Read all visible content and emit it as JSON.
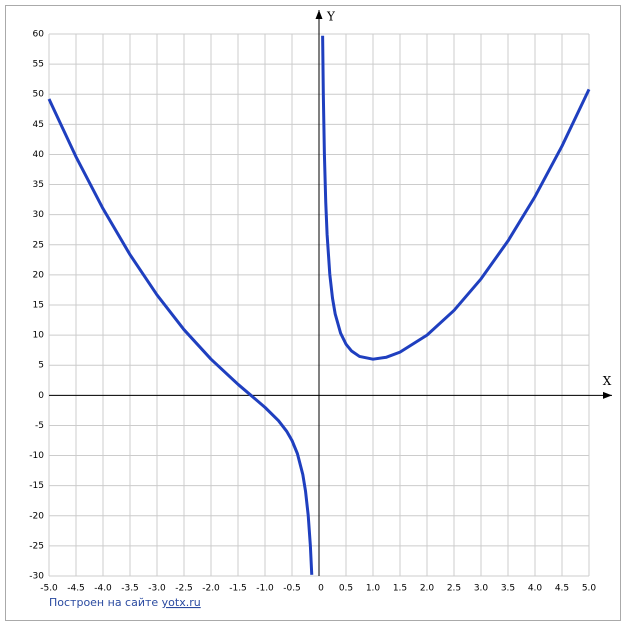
{
  "chart_data": {
    "type": "line",
    "xlabel": "X",
    "ylabel": "Y",
    "x": [
      -5,
      -4.5,
      -4,
      -3.5,
      -3,
      -2.5,
      -2,
      -1.5,
      -1.25,
      -1,
      -0.75,
      -0.6,
      -0.5,
      -0.4,
      -0.3,
      -0.25,
      -0.2,
      -0.16,
      -0.134,
      0,
      0.067,
      0.08,
      0.1,
      0.125,
      0.15,
      0.2,
      0.25,
      0.3,
      0.4,
      0.5,
      0.6,
      0.75,
      1,
      1.25,
      1.5,
      2,
      2.5,
      3,
      3.5,
      4,
      4.5,
      5
    ],
    "series": [
      {
        "color": "#1f3fbf",
        "values": [
          49.2,
          39.61,
          31,
          23.36,
          16.67,
          10.9,
          6,
          1.83,
          -0.08,
          -2,
          -4.21,
          -5.95,
          -7.5,
          -9.68,
          -13.15,
          -15.88,
          -19.92,
          -24.95,
          -29.81,
          null,
          59.71,
          50.01,
          40.02,
          32.03,
          26.71,
          20.08,
          16.13,
          13.51,
          10.32,
          8.5,
          7.39,
          6.46,
          6,
          6.33,
          7.17,
          10,
          14.1,
          19.33,
          25.64,
          33,
          41.39,
          50.8
        ]
      }
    ],
    "xlim": [
      -5,
      5
    ],
    "ylim": [
      -30,
      60
    ],
    "xticks": [
      {
        "value": -5,
        "label": "-5.0"
      },
      -4.5,
      {
        "value": -4,
        "label": "-4.0"
      },
      -3.5,
      {
        "value": -3,
        "label": "-3.0"
      },
      -2.5,
      {
        "value": -2,
        "label": "-2.0"
      },
      -1.5,
      {
        "value": -1,
        "label": "-1.0"
      },
      -0.5,
      0,
      0.5,
      {
        "value": 1,
        "label": "1.0"
      },
      1.5,
      {
        "value": 2,
        "label": "2.0"
      },
      2.5,
      {
        "value": 3,
        "label": "3.0"
      },
      3.5,
      {
        "value": 4,
        "label": "4.0"
      },
      4.5,
      {
        "value": 5,
        "label": "5.0"
      }
    ],
    "yticks": [
      -30,
      -25,
      -20,
      -15,
      -10,
      -5,
      0,
      5,
      10,
      15,
      20,
      25,
      30,
      35,
      40,
      45,
      50,
      55,
      60
    ],
    "grid": true,
    "credit": {
      "text": "Построен на сайте",
      "link": "yotx.ru"
    }
  }
}
